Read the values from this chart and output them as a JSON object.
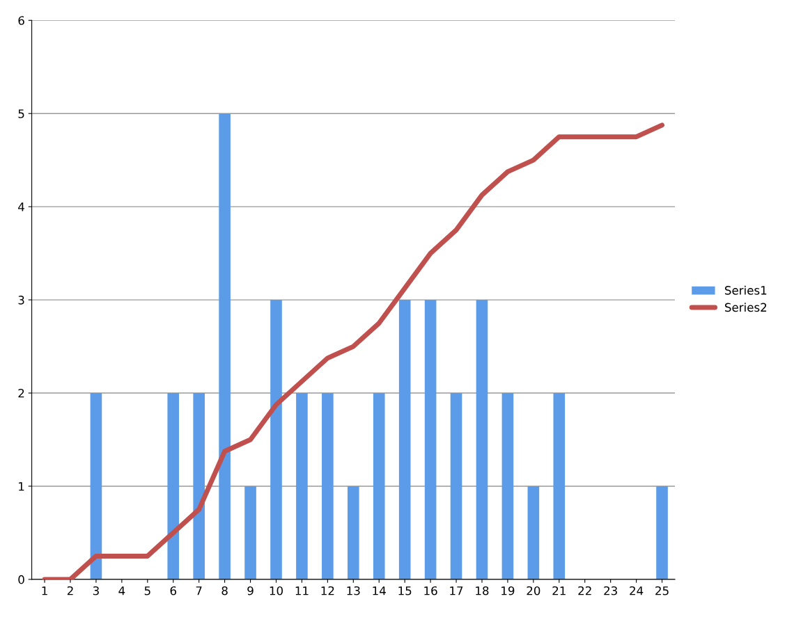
{
  "chart_data": {
    "type": "bar",
    "categories": [
      "1",
      "2",
      "3",
      "4",
      "5",
      "6",
      "7",
      "8",
      "9",
      "10",
      "11",
      "12",
      "13",
      "14",
      "15",
      "16",
      "17",
      "18",
      "19",
      "20",
      "21",
      "22",
      "23",
      "24",
      "25"
    ],
    "series": [
      {
        "name": "Series1",
        "color": "#5b9be8",
        "values": [
          0,
          0,
          2,
          0,
          0,
          2,
          2,
          5,
          1,
          3,
          2,
          2,
          1,
          2,
          3,
          3,
          2,
          3,
          2,
          1,
          2,
          0,
          0,
          0,
          1
        ]
      },
      {
        "name": "Series2",
        "type": "line",
        "color": "#c0504d",
        "values": [
          0,
          0,
          0.25,
          0.25,
          0.25,
          0.5,
          0.75,
          1.375,
          1.5,
          1.875,
          2.125,
          2.375,
          2.5,
          2.75,
          3.125,
          3.5,
          3.75,
          4.125,
          4.375,
          4.5,
          4.75,
          4.75,
          4.75,
          4.75,
          4.875
        ]
      }
    ],
    "ylim": [
      0,
      6
    ],
    "yticks": [
      0,
      1,
      2,
      3,
      4,
      5,
      6
    ],
    "grid": "y",
    "legend": "right",
    "marker": "none",
    "line_style": "solid"
  }
}
